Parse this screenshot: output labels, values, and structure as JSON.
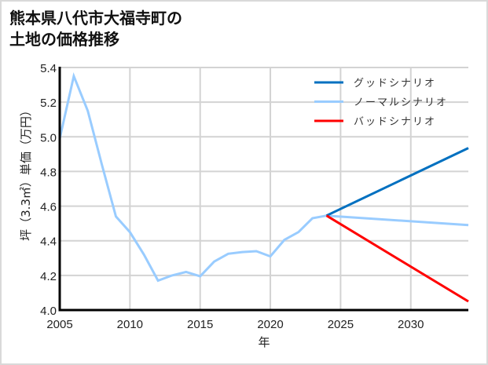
{
  "title": {
    "line1": "熊本県八代市大福寺町の",
    "line2": "土地の価格推移"
  },
  "chart_data": {
    "type": "line",
    "title": "熊本県八代市大福寺町の土地の価格推移",
    "xlabel": "年",
    "ylabel": "坪（3.3㎡）単価（万円）",
    "xlim": [
      2005,
      2034.1
    ],
    "ylim": [
      4.0,
      5.4
    ],
    "xticks": [
      2005,
      2010,
      2015,
      2020,
      2025,
      2030
    ],
    "yticks": [
      4.0,
      4.2,
      4.4,
      4.6,
      4.8,
      5.0,
      5.2,
      5.4
    ],
    "ytick_labels": [
      "4.0",
      "4.2",
      "4.4",
      "4.6",
      "4.8",
      "5.0",
      "5.2",
      "5.4"
    ],
    "grid": true,
    "legend_position": "upper right",
    "series": [
      {
        "name": "グッドシナリオ",
        "color": "#0070c0",
        "x": [
          2024,
          2034.1
        ],
        "values": [
          4.545,
          4.935
        ]
      },
      {
        "name": "ノーマルシナリオ",
        "color": "#99ccff",
        "x": [
          2005,
          2006,
          2007,
          2008,
          2009,
          2010,
          2011,
          2012,
          2013,
          2014,
          2015,
          2016,
          2017,
          2018,
          2019,
          2020,
          2021,
          2022,
          2023,
          2024,
          2034.1
        ],
        "values": [
          4.99,
          5.35,
          5.15,
          4.84,
          4.54,
          4.45,
          4.32,
          4.17,
          4.2,
          4.22,
          4.195,
          4.28,
          4.325,
          4.335,
          4.34,
          4.31,
          4.405,
          4.45,
          4.53,
          4.545,
          4.49
        ]
      },
      {
        "name": "バッドシナリオ",
        "color": "#ff0000",
        "x": [
          2024,
          2034.1
        ],
        "values": [
          4.545,
          4.05
        ]
      }
    ]
  },
  "colors": {
    "grid": "#d3d3d3",
    "axis": "#000000",
    "frame": "#d9d9d9"
  }
}
